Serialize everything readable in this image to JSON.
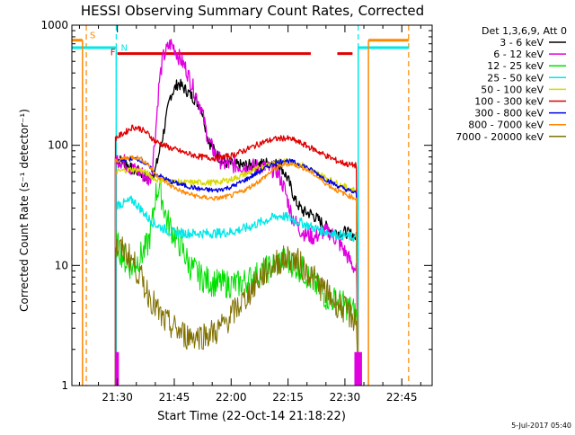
{
  "chart_data": {
    "type": "line",
    "title": "HESSI Observing Summary Count Rates, Corrected",
    "xlabel": "Start Time (22-Oct-14 21:18:22)",
    "ylabel": "Corrected Count Rate (s⁻¹ detector⁻¹)",
    "timestamp": "5-Jul-2017 05:40",
    "x_units": "minutes after 21:18:22",
    "xlim": [
      0,
      95
    ],
    "ylim": [
      1,
      1000
    ],
    "yscale": "log",
    "x_ticks": [
      {
        "x": 12,
        "label": "21:30"
      },
      {
        "x": 27,
        "label": "21:45"
      },
      {
        "x": 42,
        "label": "22:00"
      },
      {
        "x": 57,
        "label": "22:15"
      },
      {
        "x": 72,
        "label": "22:30"
      },
      {
        "x": 87,
        "label": "22:45"
      }
    ],
    "y_ticks": [
      {
        "y": 1,
        "label": "1"
      },
      {
        "y": 10,
        "label": "10"
      },
      {
        "y": 100,
        "label": "100"
      },
      {
        "y": 1000,
        "label": "1000"
      }
    ],
    "legend_header": "Det 1,3,6,9, Att 0",
    "legend_position": "right, outside plot",
    "series": [
      {
        "name": "3 - 6 keV",
        "color": "#000000",
        "noise": 0.05,
        "points": [
          [
            11.5,
            1
          ],
          [
            11.5,
            78
          ],
          [
            14,
            72
          ],
          [
            16,
            62
          ],
          [
            18,
            60
          ],
          [
            20,
            52
          ],
          [
            22,
            62
          ],
          [
            24,
            120
          ],
          [
            26,
            260
          ],
          [
            28,
            330
          ],
          [
            30,
            290
          ],
          [
            32,
            250
          ],
          [
            34,
            210
          ],
          [
            35,
            155
          ],
          [
            36,
            110
          ],
          [
            38,
            85
          ],
          [
            40,
            72
          ],
          [
            44,
            68
          ],
          [
            48,
            68
          ],
          [
            52,
            72
          ],
          [
            55,
            68
          ],
          [
            57,
            52
          ],
          [
            59,
            34
          ],
          [
            61,
            28
          ],
          [
            63,
            27
          ],
          [
            65,
            24
          ],
          [
            67,
            21
          ],
          [
            69,
            19
          ],
          [
            72,
            19
          ],
          [
            74,
            18
          ],
          [
            75,
            17
          ],
          [
            75.5,
            1
          ]
        ]
      },
      {
        "name": "6 - 12 keV",
        "color": "#e000e0",
        "noise": 0.07,
        "points": [
          [
            11.5,
            1
          ],
          [
            11.5,
            78
          ],
          [
            14,
            72
          ],
          [
            16,
            63
          ],
          [
            18,
            60
          ],
          [
            20,
            52
          ],
          [
            21,
            57
          ],
          [
            22,
            120
          ],
          [
            23,
            330
          ],
          [
            24,
            530
          ],
          [
            25,
            620
          ],
          [
            26,
            700
          ],
          [
            27,
            650
          ],
          [
            28,
            560
          ],
          [
            30,
            440
          ],
          [
            32,
            300
          ],
          [
            34,
            210
          ],
          [
            36,
            110
          ],
          [
            38,
            82
          ],
          [
            40,
            70
          ],
          [
            45,
            67
          ],
          [
            50,
            66
          ],
          [
            54,
            62
          ],
          [
            56,
            44
          ],
          [
            58,
            26
          ],
          [
            60,
            20
          ],
          [
            62,
            18
          ],
          [
            64,
            17
          ],
          [
            66,
            19
          ],
          [
            68,
            19
          ],
          [
            70,
            16
          ],
          [
            72,
            13
          ],
          [
            74,
            10
          ],
          [
            75,
            9
          ],
          [
            75.5,
            1
          ]
        ]
      },
      {
        "name": "12 - 25 keV",
        "color": "#00e000",
        "noise": 0.12,
        "points": [
          [
            11.5,
            1
          ],
          [
            11.5,
            16
          ],
          [
            14,
            11
          ],
          [
            16,
            9.5
          ],
          [
            18,
            12
          ],
          [
            19,
            13
          ],
          [
            20,
            15
          ],
          [
            21,
            20
          ],
          [
            22,
            38
          ],
          [
            23,
            46
          ],
          [
            24,
            34
          ],
          [
            25,
            24
          ],
          [
            27,
            18
          ],
          [
            29,
            14
          ],
          [
            31,
            10
          ],
          [
            34,
            8
          ],
          [
            37,
            7.2
          ],
          [
            40,
            7
          ],
          [
            44,
            7
          ],
          [
            48,
            8
          ],
          [
            52,
            9.5
          ],
          [
            55,
            11
          ],
          [
            58,
            10.5
          ],
          [
            61,
            9
          ],
          [
            64,
            7
          ],
          [
            67,
            5.5
          ],
          [
            70,
            5
          ],
          [
            73,
            4.5
          ],
          [
            75,
            4
          ],
          [
            75.5,
            1
          ]
        ]
      },
      {
        "name": "25 - 50 keV",
        "color": "#00e8e8",
        "noise": 0.04,
        "points": [
          [
            11.5,
            1
          ],
          [
            11.5,
            32
          ],
          [
            14,
            33
          ],
          [
            16,
            35
          ],
          [
            18,
            30
          ],
          [
            20,
            25
          ],
          [
            22,
            22
          ],
          [
            26,
            19
          ],
          [
            30,
            18.5
          ],
          [
            34,
            18.5
          ],
          [
            38,
            18.5
          ],
          [
            42,
            19
          ],
          [
            46,
            20.5
          ],
          [
            50,
            23
          ],
          [
            53,
            25
          ],
          [
            55,
            26
          ],
          [
            57,
            25
          ],
          [
            60,
            23
          ],
          [
            63,
            21
          ],
          [
            66,
            19.5
          ],
          [
            70,
            18
          ],
          [
            75,
            17
          ],
          [
            75.5,
            1
          ]
        ]
      },
      {
        "name": "50 - 100 keV",
        "color": "#d8d800",
        "noise": 0.025,
        "points": [
          [
            11.5,
            1
          ],
          [
            11.5,
            60
          ],
          [
            14,
            62
          ],
          [
            16,
            63
          ],
          [
            18,
            62
          ],
          [
            20,
            58
          ],
          [
            22,
            52
          ],
          [
            26,
            50
          ],
          [
            30,
            49
          ],
          [
            34,
            49
          ],
          [
            38,
            49
          ],
          [
            42,
            52
          ],
          [
            46,
            58
          ],
          [
            50,
            66
          ],
          [
            53,
            72
          ],
          [
            56,
            74
          ],
          [
            58,
            72
          ],
          [
            61,
            68
          ],
          [
            64,
            60
          ],
          [
            67,
            54
          ],
          [
            70,
            48
          ],
          [
            73,
            44
          ],
          [
            75,
            42
          ],
          [
            75.5,
            1
          ]
        ]
      },
      {
        "name": "100 - 300 keV",
        "color": "#e00000",
        "noise": 0.025,
        "points": [
          [
            11.5,
            1
          ],
          [
            11.5,
            115
          ],
          [
            14,
            128
          ],
          [
            16,
            142
          ],
          [
            18,
            138
          ],
          [
            20,
            125
          ],
          [
            22,
            108
          ],
          [
            26,
            95
          ],
          [
            30,
            86
          ],
          [
            34,
            80
          ],
          [
            38,
            78
          ],
          [
            42,
            82
          ],
          [
            46,
            92
          ],
          [
            50,
            105
          ],
          [
            53,
            112
          ],
          [
            56,
            115
          ],
          [
            58,
            112
          ],
          [
            61,
            102
          ],
          [
            64,
            92
          ],
          [
            67,
            82
          ],
          [
            70,
            74
          ],
          [
            73,
            69
          ],
          [
            75,
            68
          ],
          [
            75.5,
            1
          ]
        ]
      },
      {
        "name": "300 - 800 keV",
        "color": "#0000e0",
        "noise": 0.02,
        "points": [
          [
            11.5,
            1
          ],
          [
            11.5,
            72
          ],
          [
            14,
            76
          ],
          [
            16,
            78
          ],
          [
            18,
            76
          ],
          [
            20,
            68
          ],
          [
            22,
            58
          ],
          [
            26,
            50
          ],
          [
            30,
            46
          ],
          [
            34,
            43
          ],
          [
            38,
            42
          ],
          [
            42,
            45
          ],
          [
            46,
            52
          ],
          [
            50,
            62
          ],
          [
            53,
            70
          ],
          [
            56,
            75
          ],
          [
            58,
            73
          ],
          [
            61,
            68
          ],
          [
            64,
            60
          ],
          [
            67,
            52
          ],
          [
            70,
            46
          ],
          [
            73,
            42
          ],
          [
            75,
            40
          ],
          [
            75.5,
            1
          ]
        ]
      },
      {
        "name": "800 - 7000 keV",
        "color": "#ff8800",
        "noise": 0.02,
        "points": [
          [
            11.5,
            1
          ],
          [
            11.5,
            74
          ],
          [
            14,
            78
          ],
          [
            16,
            80
          ],
          [
            18,
            78
          ],
          [
            20,
            70
          ],
          [
            22,
            58
          ],
          [
            26,
            46
          ],
          [
            30,
            40
          ],
          [
            34,
            37
          ],
          [
            38,
            36
          ],
          [
            42,
            38
          ],
          [
            46,
            43
          ],
          [
            50,
            52
          ],
          [
            53,
            62
          ],
          [
            56,
            70
          ],
          [
            58,
            70
          ],
          [
            61,
            65
          ],
          [
            64,
            57
          ],
          [
            67,
            48
          ],
          [
            70,
            42
          ],
          [
            73,
            38
          ],
          [
            75,
            36
          ],
          [
            75.5,
            1
          ]
        ]
      },
      {
        "name": "7000 - 20000 keV",
        "color": "#807000",
        "noise": 0.12,
        "points": [
          [
            11.5,
            1
          ],
          [
            11.5,
            14
          ],
          [
            14,
            13
          ],
          [
            16,
            11
          ],
          [
            18,
            8
          ],
          [
            20,
            6
          ],
          [
            22,
            4.5
          ],
          [
            24,
            3.5
          ],
          [
            27,
            3
          ],
          [
            30,
            2.6
          ],
          [
            34,
            2.6
          ],
          [
            38,
            2.8
          ],
          [
            40,
            3.2
          ],
          [
            43,
            4.2
          ],
          [
            46,
            5.5
          ],
          [
            49,
            7.5
          ],
          [
            52,
            9.5
          ],
          [
            55,
            11
          ],
          [
            57,
            11.5
          ],
          [
            59,
            11
          ],
          [
            62,
            9
          ],
          [
            65,
            7
          ],
          [
            68,
            5.5
          ],
          [
            71,
            4.5
          ],
          [
            74,
            3.7
          ],
          [
            75,
            3.5
          ],
          [
            75.5,
            1
          ]
        ]
      }
    ],
    "annotations": [
      {
        "label": "S",
        "color": "#ff8800",
        "x": 2.7,
        "style": "dashed-line"
      },
      {
        "label": "N",
        "color": "#00e8e8",
        "x": 11.7,
        "style": "dashed-line"
      },
      {
        "label": "F",
        "color": "#e00000",
        "style": "flare-bar"
      }
    ],
    "flare_segments": [
      [
        12,
        63
      ],
      [
        70,
        74
      ]
    ],
    "step_boxes": [
      {
        "color": "#00e8e8",
        "x0": 0,
        "x1": 11.7,
        "y": 650
      },
      {
        "color": "#ff8800",
        "x0": 0,
        "x1": 2.8,
        "y": 750
      },
      {
        "color": "#00e8e8",
        "x0": 75.5,
        "x1": 88.8,
        "y": 650
      },
      {
        "color": "#ff8800",
        "x0": 78.2,
        "x1": 88.8,
        "y": 750
      }
    ],
    "vertical_dashed": [
      {
        "color": "#ff8800",
        "x": 3.8
      },
      {
        "color": "#00e8e8",
        "x": 11.7
      },
      {
        "color": "#00e8e8",
        "x": 75.5
      },
      {
        "color": "#ff8800",
        "x": 88.8
      }
    ]
  }
}
